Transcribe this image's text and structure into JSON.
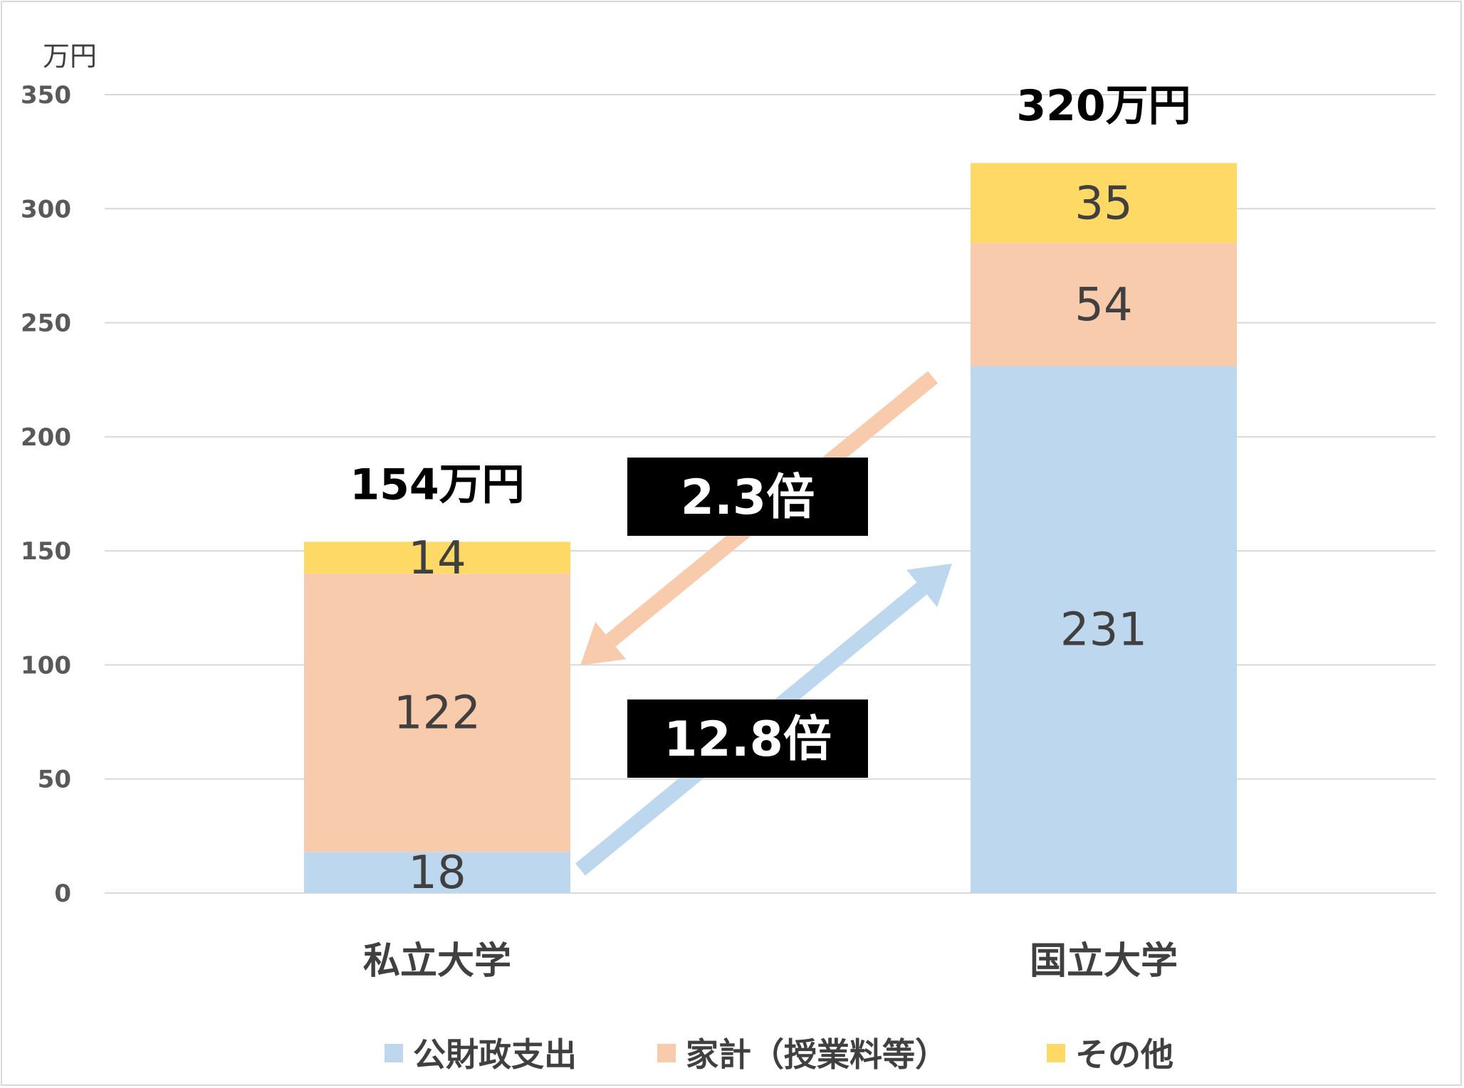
{
  "chart_data": {
    "type": "bar",
    "stacked": true,
    "unit_label": "万円",
    "categories": [
      "私立大学",
      "国立大学"
    ],
    "series": [
      {
        "name": "公財政支出",
        "values": [
          18,
          231
        ],
        "color": "#bdd7ee"
      },
      {
        "name": "家計（授業料等）",
        "values": [
          122,
          54
        ],
        "color": "#f8cbad"
      },
      {
        "name": "その他",
        "values": [
          14,
          35
        ],
        "color": "#ffd966"
      }
    ],
    "totals": [
      "154万円",
      "320万円"
    ],
    "ylim": [
      0,
      350
    ],
    "yticks": [
      0,
      50,
      100,
      150,
      200,
      250,
      300,
      350
    ],
    "grid": true,
    "legend_position": "bottom",
    "annotations": [
      {
        "text": "2.3倍",
        "arrow_color": "#f8cbad",
        "direction": "national-to-private"
      },
      {
        "text": "12.8倍",
        "arrow_color": "#bdd7ee",
        "direction": "private-to-national"
      }
    ]
  }
}
